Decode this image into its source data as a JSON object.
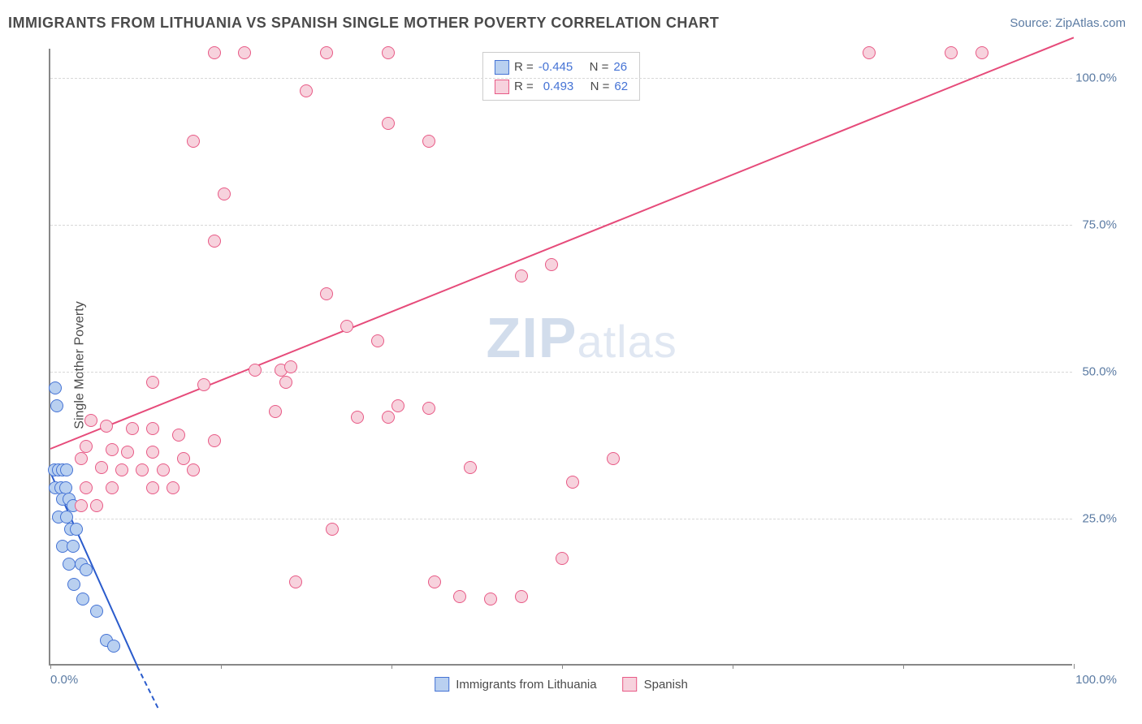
{
  "title": "IMMIGRANTS FROM LITHUANIA VS SPANISH SINGLE MOTHER POVERTY CORRELATION CHART",
  "source_prefix": "Source: ",
  "source_name": "ZipAtlas.com",
  "y_axis_label": "Single Mother Poverty",
  "watermark_zip": "ZIP",
  "watermark_rest": "atlas",
  "chart": {
    "type": "scatter",
    "xlim": [
      0,
      100
    ],
    "ylim": [
      0,
      105
    ],
    "y_ticks": [
      25.0,
      50.0,
      75.0,
      100.0
    ],
    "y_tick_labels": [
      "25.0%",
      "50.0%",
      "75.0%",
      "100.0%"
    ],
    "x_tick_positions": [
      0,
      16.67,
      33.33,
      50,
      66.67,
      83.33,
      100
    ],
    "x_left_label": "0.0%",
    "x_right_label": "100.0%",
    "grid_color": "#d8d8d8",
    "axis_color": "#888888",
    "background_color": "#ffffff"
  },
  "series": [
    {
      "id": "lithuania",
      "label": "Immigrants from Lithuania",
      "R_label": "R =",
      "R": "-0.445",
      "N_label": "N =",
      "N": "26",
      "fill": "#b9d0f0",
      "stroke": "#4573d5",
      "line_color": "#2a5bcc",
      "points": [
        [
          0.5,
          47
        ],
        [
          0.6,
          44
        ],
        [
          0.4,
          33
        ],
        [
          0.8,
          33
        ],
        [
          1.2,
          33
        ],
        [
          1.6,
          33
        ],
        [
          0.5,
          30
        ],
        [
          1.0,
          30
        ],
        [
          1.5,
          30
        ],
        [
          1.2,
          28
        ],
        [
          1.8,
          28
        ],
        [
          2.2,
          27
        ],
        [
          0.8,
          25
        ],
        [
          1.6,
          25
        ],
        [
          2.0,
          23
        ],
        [
          2.5,
          23
        ],
        [
          1.2,
          20
        ],
        [
          2.2,
          20
        ],
        [
          1.8,
          17
        ],
        [
          3.0,
          17
        ],
        [
          3.5,
          16
        ],
        [
          2.3,
          13.5
        ],
        [
          3.2,
          11
        ],
        [
          4.5,
          9
        ],
        [
          5.5,
          4
        ],
        [
          6.2,
          3
        ]
      ],
      "trend": {
        "x1": 0,
        "y1": 33,
        "x2": 8.5,
        "y2": 0
      },
      "dash": {
        "x1": 8.5,
        "y1": 0,
        "x2": 10.5,
        "y2": -7
      }
    },
    {
      "id": "spanish",
      "label": "Spanish",
      "R_label": "R =",
      "R": "0.493",
      "N_label": "N =",
      "N": "62",
      "fill": "#f7d2dd",
      "stroke": "#e85a86",
      "line_color": "#e64b7a",
      "points": [
        [
          16,
          104
        ],
        [
          19,
          104
        ],
        [
          27,
          104
        ],
        [
          33,
          104
        ],
        [
          80,
          104
        ],
        [
          88,
          104
        ],
        [
          91,
          104
        ],
        [
          25,
          97.5
        ],
        [
          33,
          92
        ],
        [
          37,
          89
        ],
        [
          14,
          89
        ],
        [
          17,
          80
        ],
        [
          16,
          72
        ],
        [
          49,
          68
        ],
        [
          46,
          66
        ],
        [
          27,
          63
        ],
        [
          29,
          57.5
        ],
        [
          32,
          55
        ],
        [
          20,
          50
        ],
        [
          22.5,
          50
        ],
        [
          23.5,
          50.5
        ],
        [
          10,
          48
        ],
        [
          15,
          47.5
        ],
        [
          23,
          48
        ],
        [
          34,
          44
        ],
        [
          37,
          43.5
        ],
        [
          22,
          43
        ],
        [
          30,
          42
        ],
        [
          33,
          42
        ],
        [
          4,
          41.5
        ],
        [
          5.5,
          40.5
        ],
        [
          8,
          40
        ],
        [
          10,
          40
        ],
        [
          12.5,
          39
        ],
        [
          16,
          38
        ],
        [
          3.5,
          37
        ],
        [
          6,
          36.5
        ],
        [
          7.5,
          36
        ],
        [
          10,
          36
        ],
        [
          13,
          35
        ],
        [
          55,
          35
        ],
        [
          51,
          31
        ],
        [
          14,
          33
        ],
        [
          3,
          35
        ],
        [
          5,
          33.5
        ],
        [
          7,
          33
        ],
        [
          9,
          33
        ],
        [
          11,
          33
        ],
        [
          41,
          33.5
        ],
        [
          3.5,
          30
        ],
        [
          6,
          30
        ],
        [
          10,
          30
        ],
        [
          12,
          30
        ],
        [
          50,
          18
        ],
        [
          24,
          14
        ],
        [
          37.5,
          14
        ],
        [
          40,
          11.5
        ],
        [
          43,
          11
        ],
        [
          46,
          11.5
        ],
        [
          3,
          27
        ],
        [
          4.5,
          27
        ],
        [
          27.5,
          23
        ]
      ],
      "trend": {
        "x1": 0,
        "y1": 37,
        "x2": 100,
        "y2": 107
      }
    }
  ],
  "x_legend": {
    "items": [
      {
        "label": "Immigrants from Lithuania",
        "fill": "#b9d0f0",
        "stroke": "#4573d5"
      },
      {
        "label": "Spanish",
        "fill": "#f7d2dd",
        "stroke": "#e85a86"
      }
    ]
  }
}
